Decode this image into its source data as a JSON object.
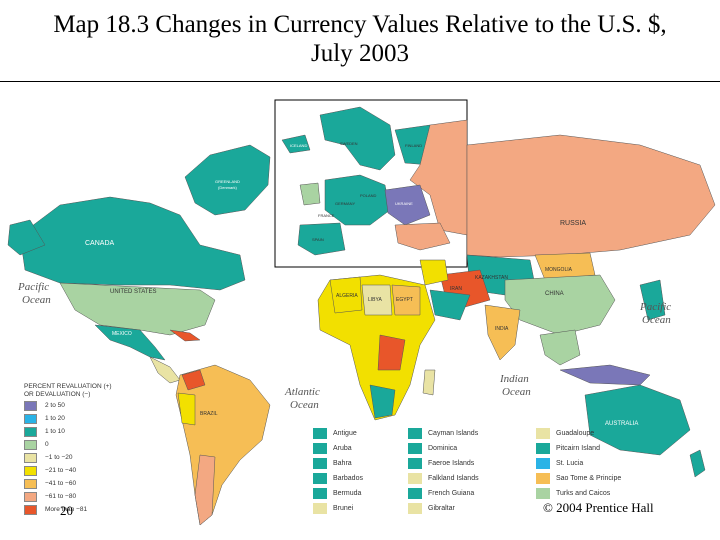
{
  "title": {
    "line1": "Map 18.3 Changes in Currency Values Relative to the U.S. $,",
    "line2": "July 2003"
  },
  "colors": {
    "up_2_50": "#7a77b8",
    "up_1_20": "#2ab3e6",
    "up_1_10": "#1aa89a",
    "zero": "#a9d3a2",
    "down_1_20": "#e9e3a4",
    "down_21_40": "#f2e000",
    "down_41_60": "#f6be55",
    "down_61_80": "#f3a882",
    "down_81_plus": "#e8562a",
    "ocean": "#ffffff"
  },
  "legend": {
    "heading_line1": "PERCENT REVALUATION (+)",
    "heading_line2": "OR DEVALUATION (−)",
    "items": [
      {
        "label": "2 to 50"
      },
      {
        "label": "1 to 20"
      },
      {
        "label": "1 to 10"
      },
      {
        "label": "0"
      },
      {
        "label": "−1 to −20"
      },
      {
        "label": "−21 to −40"
      },
      {
        "label": "−41 to −60"
      },
      {
        "label": "−61 to −80"
      },
      {
        "label": "More than −81"
      }
    ]
  },
  "islands": [
    {
      "label": "Antigue"
    },
    {
      "label": "Cayman Islands"
    },
    {
      "label": "Guadaloupe"
    },
    {
      "label": "Aruba"
    },
    {
      "label": "Dominica"
    },
    {
      "label": "Pitcairn Island"
    },
    {
      "label": "Bahra"
    },
    {
      "label": "Faeroe Islands"
    },
    {
      "label": "St. Lucia"
    },
    {
      "label": "Barbados"
    },
    {
      "label": "Falkland Islands"
    },
    {
      "label": "Sao Tome & Principe"
    },
    {
      "label": "Bermuda"
    },
    {
      "label": "French Guiana"
    },
    {
      "label": "Turks and Caicos"
    },
    {
      "label": "Brunei"
    },
    {
      "label": "Gibraltar"
    },
    {
      "label": ""
    }
  ],
  "map_labels": {
    "canada": "CANADA",
    "us": "UNITED STATES",
    "russia": "RUSSIA",
    "china": "CHINA",
    "pacific_left_1": "Pacific",
    "pacific_left_2": "Ocean",
    "pacific_right_1": "Pacific",
    "pacific_right_2": "Ocean",
    "atlantic_1": "Atlantic",
    "atlantic_2": "Ocean",
    "indian_1": "Indian",
    "indian_2": "Ocean",
    "iceland": "ICELAND",
    "greenland_1": "GREENLAND",
    "greenland_2": "(Denmark)",
    "mexico": "MEXICO",
    "brazil": "BRAZIL",
    "algeria": "ALGERIA",
    "libya": "LIBYA",
    "egypt": "EGYPT",
    "mongolia": "MONGOLIA",
    "india": "INDIA",
    "australia": "AUSTRALIA",
    "ukraine": "UKRAINE",
    "sweden": "SWEDEN",
    "finland": "FINLAND",
    "poland": "POLAND",
    "germany": "GERMANY",
    "spain": "SPAIN",
    "france": "FRANCE",
    "kazakhstan": "KAZAKHSTAN",
    "iran": "IRAN"
  },
  "page_number": "20",
  "copyright": "© 2004 Prentice Hall"
}
